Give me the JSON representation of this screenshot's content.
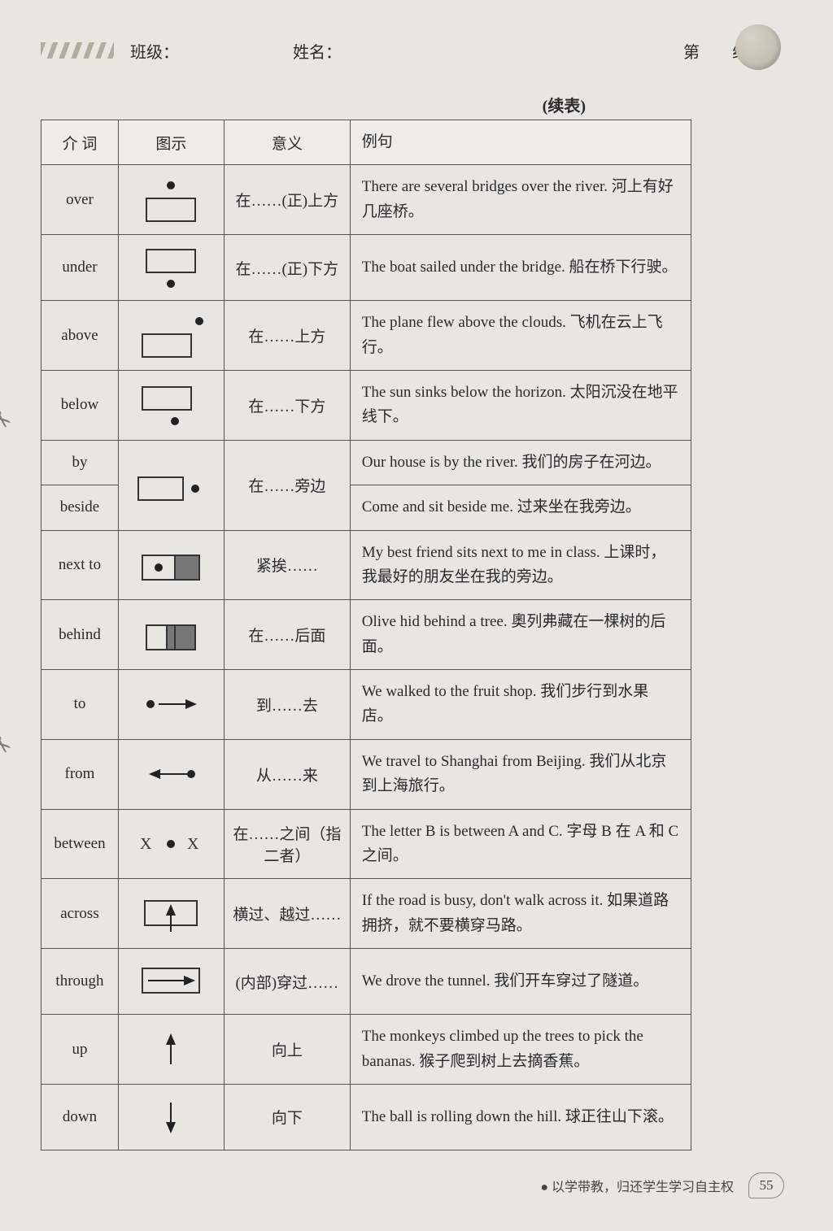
{
  "header": {
    "class_label": "班级：",
    "name_label": "姓名：",
    "group_prefix": "第",
    "group_suffix": "组"
  },
  "continued_label": "(续表)",
  "table": {
    "headers": {
      "prep": "介 词",
      "illus": "图示",
      "meaning": "意义",
      "example": "例句"
    },
    "rows": [
      {
        "id": "over",
        "prep": "over",
        "meaning": "在……(正)上方",
        "example": "There are several bridges over the river. 河上有好几座桥。",
        "illus": "over"
      },
      {
        "id": "under",
        "prep": "under",
        "meaning": "在……(正)下方",
        "example": "The boat sailed under the bridge. 船在桥下行驶。",
        "illus": "under"
      },
      {
        "id": "above",
        "prep": "above",
        "meaning": "在……上方",
        "example": "The plane flew above the clouds. 飞机在云上飞行。",
        "illus": "above"
      },
      {
        "id": "below",
        "prep": "below",
        "meaning": "在……下方",
        "example": "The sun sinks below the horizon. 太阳沉没在地平线下。",
        "illus": "below"
      },
      {
        "id": "by",
        "prep": "by",
        "meaning": "在……旁边",
        "example": "Our house is by the river. 我们的房子在河边。",
        "illus": "beside",
        "merge_illus": 2,
        "merge_mean": 2
      },
      {
        "id": "beside",
        "prep": "beside",
        "meaning": "",
        "example": "Come and sit beside me. 过来坐在我旁边。",
        "illus": "",
        "skip_illus": true,
        "skip_mean": true
      },
      {
        "id": "nextto",
        "prep": "next to",
        "meaning": "紧挨……",
        "example": "My best friend sits next to me in class. 上课时，我最好的朋友坐在我的旁边。",
        "illus": "nextto"
      },
      {
        "id": "behind",
        "prep": "behind",
        "meaning": "在……后面",
        "example": "Olive hid behind a tree. 奧列弗藏在一棵树的后面。",
        "illus": "behind"
      },
      {
        "id": "to",
        "prep": "to",
        "meaning": "到……去",
        "example": "We walked to the fruit shop. 我们步行到水果店。",
        "illus": "to"
      },
      {
        "id": "from",
        "prep": "from",
        "meaning": "从……来",
        "example": "We travel to Shanghai from Beijing. 我们从北京到上海旅行。",
        "illus": "from"
      },
      {
        "id": "between",
        "prep": "between",
        "meaning": "在……之间（指二者）",
        "example": "The letter B is between A and C. 字母 B 在 A 和 C 之间。",
        "illus": "between"
      },
      {
        "id": "across",
        "prep": "across",
        "meaning": "横过、越过……",
        "example": "If the road is busy, don't walk across it. 如果道路拥挤，就不要横穿马路。",
        "illus": "across"
      },
      {
        "id": "through",
        "prep": "through",
        "meaning": "(内部)穿过……",
        "example": "We drove the tunnel. 我们开车穿过了隧道。",
        "illus": "through"
      },
      {
        "id": "up",
        "prep": "up",
        "meaning": "向上",
        "example": "The monkeys climbed up the trees to pick the bananas. 猴子爬到树上去摘香蕉。",
        "illus": "up"
      },
      {
        "id": "down",
        "prep": "down",
        "meaning": "向下",
        "example": "The ball is rolling down the hill. 球正往山下滚。",
        "illus": "down"
      }
    ]
  },
  "footer": {
    "motto": "● 以学带教，归还学生学习自主权",
    "page_number": "55"
  },
  "colors": {
    "page_bg": "#e8e6e0",
    "border": "#555555",
    "text": "#2a2a2a"
  }
}
